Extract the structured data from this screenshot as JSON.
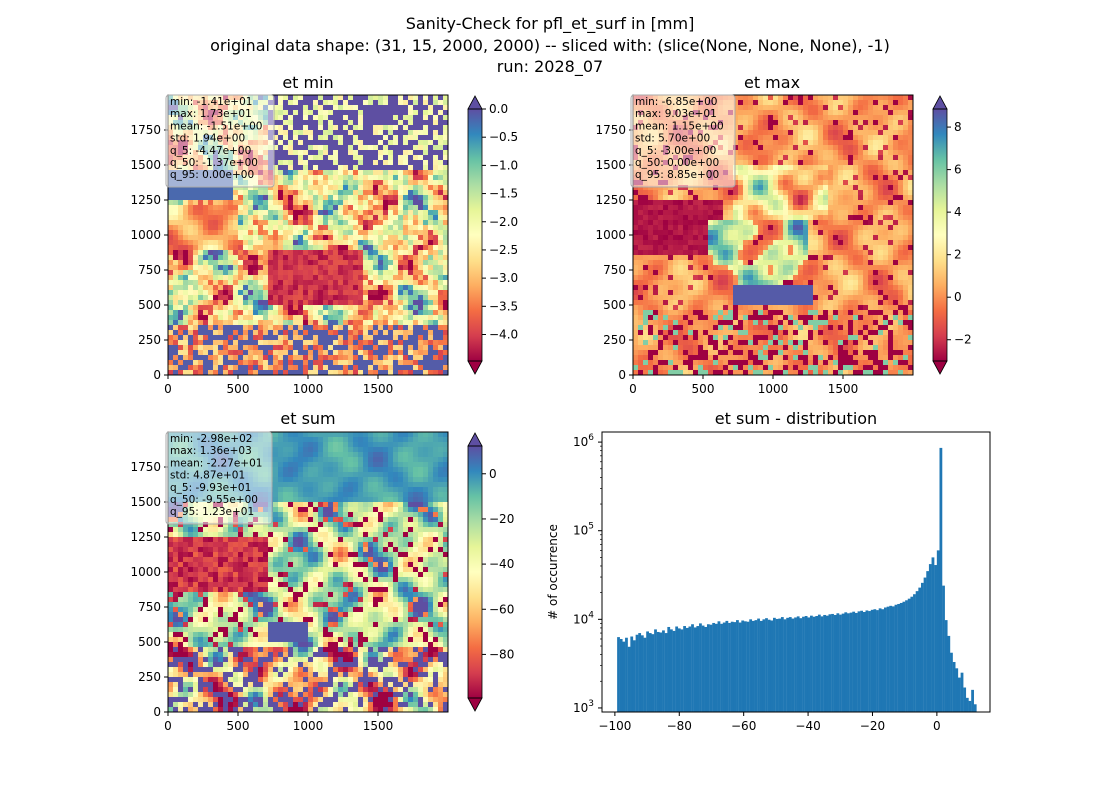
{
  "figure": {
    "suptitle_lines": [
      "Sanity-Check for pfl_et_surf in [mm]",
      "original data shape: (31, 15, 2000, 2000) -- sliced with: (slice(None, None, None), -1)",
      "run: 2028_07"
    ],
    "colormap": "Spectral",
    "colormap_stops": [
      "#9e0142",
      "#d53e4f",
      "#f46d43",
      "#fdae61",
      "#fee08b",
      "#ffffbf",
      "#e6f598",
      "#abdda4",
      "#66c2a5",
      "#3288bd",
      "#5e4fa2"
    ]
  },
  "chart_data": [
    {
      "type": "heatmap",
      "id": "et_min",
      "title": "et min",
      "x_ticks": [
        0,
        500,
        1000,
        1500
      ],
      "y_ticks": [
        0,
        250,
        500,
        750,
        1000,
        1250,
        1500,
        1750
      ],
      "xlim": [
        0,
        2000
      ],
      "ylim": [
        0,
        2000
      ],
      "colorbar": {
        "vmin": -4.47,
        "vmax": 0.0,
        "ticks": [
          0.0,
          -0.5,
          -1.0,
          -1.5,
          -2.0,
          -2.5,
          -3.0,
          -3.5,
          -4.0
        ],
        "tick_labels": [
          "0.0",
          "−0.5",
          "−1.0",
          "−1.5",
          "−2.0",
          "−2.5",
          "−3.0",
          "−3.5",
          "−4.0"
        ],
        "extend": "both"
      },
      "stats": [
        "min: -1.41e+01",
        "max: 1.73e+01",
        "mean: -1.51e+00",
        "std: 1.94e+00",
        "q_5: -4.47e+00",
        "q_50: -1.37e+00",
        "q_95: 0.00e+00"
      ]
    },
    {
      "type": "heatmap",
      "id": "et_max",
      "title": "et max",
      "x_ticks": [
        0,
        500,
        1000,
        1500
      ],
      "y_ticks": [
        0,
        250,
        500,
        750,
        1000,
        1250,
        1500,
        1750
      ],
      "xlim": [
        0,
        2000
      ],
      "ylim": [
        0,
        2000
      ],
      "colorbar": {
        "vmin": -3.0,
        "vmax": 8.85,
        "ticks": [
          8,
          6,
          4,
          2,
          0,
          -2
        ],
        "tick_labels": [
          "8",
          "6",
          "4",
          "2",
          "0",
          "−2"
        ],
        "extend": "both"
      },
      "stats": [
        "min: -6.85e+00",
        "max: 9.03e+01",
        "mean: 1.15e+00",
        "std: 5.70e+00",
        "q_5: -3.00e+00",
        "q_50: 0.00e+00",
        "q_95: 8.85e+00"
      ]
    },
    {
      "type": "heatmap",
      "id": "et_sum",
      "title": "et sum",
      "x_ticks": [
        0,
        500,
        1000,
        1500
      ],
      "y_ticks": [
        0,
        250,
        500,
        750,
        1000,
        1250,
        1500,
        1750
      ],
      "xlim": [
        0,
        2000
      ],
      "ylim": [
        0,
        2000
      ],
      "colorbar": {
        "vmin": -99.3,
        "vmax": 12.3,
        "ticks": [
          0,
          -20,
          -40,
          -60,
          -80
        ],
        "tick_labels": [
          "0",
          "−20",
          "−40",
          "−60",
          "−80"
        ],
        "extend": "both"
      },
      "stats": [
        "min: -2.98e+02",
        "max: 1.36e+03",
        "mean: -2.27e+01",
        "std: 4.87e+01",
        "q_5: -9.93e+01",
        "q_50: -9.55e+00",
        "q_95: 1.23e+01"
      ]
    },
    {
      "type": "bar",
      "id": "et_sum_distribution",
      "title": "et sum - distribution",
      "ylabel": "# of occurrence",
      "yscale": "log",
      "xlim": [
        -104,
        16.5
      ],
      "ylim": [
        900,
        1300000
      ],
      "x_ticks": [
        -100,
        -80,
        -60,
        -40,
        -20,
        0
      ],
      "x_tick_labels": [
        "−100",
        "−80",
        "−60",
        "−40",
        "−20",
        "0"
      ],
      "y_ticks": [
        1000,
        10000,
        100000,
        1000000
      ],
      "y_tick_labels": [
        [
          "10",
          "3"
        ],
        [
          "10",
          "4"
        ],
        [
          "10",
          "5"
        ],
        [
          "10",
          "6"
        ]
      ],
      "bar_color": "#1f77b4",
      "bins": {
        "start": -99.3,
        "stop": 12.3,
        "counts": [
          6300,
          6000,
          5600,
          6200,
          4900,
          6400,
          5800,
          6700,
          7000,
          6600,
          6200,
          7300,
          7000,
          6800,
          7700,
          7200,
          7100,
          7500,
          7000,
          8200,
          7700,
          7400,
          8300,
          7900,
          7700,
          8400,
          8000,
          8300,
          8800,
          8100,
          8400,
          9000,
          8500,
          8200,
          8800,
          8700,
          9100,
          8900,
          9500,
          8900,
          9200,
          9600,
          9100,
          9400,
          9300,
          9800,
          9200,
          9700,
          9500,
          9400,
          10000,
          9600,
          9800,
          10200,
          9600,
          10000,
          10300,
          9900,
          9700,
          10400,
          10100,
          10200,
          10600,
          10000,
          10400,
          10600,
          10200,
          10500,
          10800,
          10300,
          10700,
          10900,
          10500,
          11000,
          10700,
          10900,
          11300,
          10800,
          11200,
          11000,
          11400,
          11500,
          11200,
          11700,
          11300,
          11600,
          12000,
          11700,
          11900,
          12200,
          11800,
          12300,
          12500,
          12100,
          12600,
          12400,
          12800,
          13000,
          12700,
          13300,
          13000,
          13600,
          13900,
          14200,
          14000,
          14600,
          14900,
          15300,
          15800,
          16400,
          17100,
          18000,
          19200,
          20800,
          22800,
          25800,
          29600,
          35000,
          42000,
          50000,
          41000,
          60000,
          860000,
          24000,
          9800,
          6500,
          4200,
          3300,
          2800,
          2200,
          2500,
          1700,
          1300,
          1200,
          1600,
          1100
        ]
      }
    }
  ]
}
